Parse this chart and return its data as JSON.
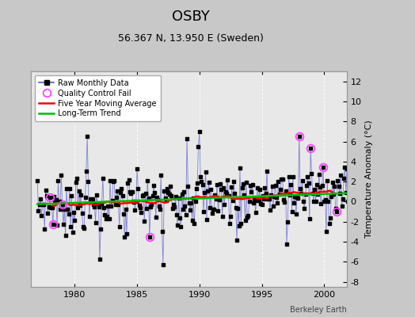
{
  "title": "OSBY",
  "subtitle": "56.367 N, 13.950 E (Sweden)",
  "ylabel": "Temperature Anomaly (°C)",
  "credit": "Berkeley Earth",
  "ylim": [
    -8.5,
    13.0
  ],
  "xlim": [
    1976.5,
    2001.8
  ],
  "xticks": [
    1980,
    1985,
    1990,
    1995,
    2000
  ],
  "yticks_right": [
    -8,
    -6,
    -4,
    -2,
    0,
    2,
    4,
    6,
    8,
    10,
    12
  ],
  "bg_color": "#c8c8c8",
  "plot_bg_color": "#e8e8e8",
  "line_color": "#5555cc",
  "moving_avg_color": "#ff0000",
  "trend_color": "#00bb00",
  "qc_fail_color": "#ff44ff",
  "grid_color": "#ffffff",
  "legend_labels": [
    "Raw Monthly Data",
    "Quality Control Fail",
    "Five Year Moving Average",
    "Long-Term Trend"
  ],
  "title_fontsize": 13,
  "subtitle_fontsize": 9,
  "tick_labelsize": 8,
  "ylabel_fontsize": 8
}
